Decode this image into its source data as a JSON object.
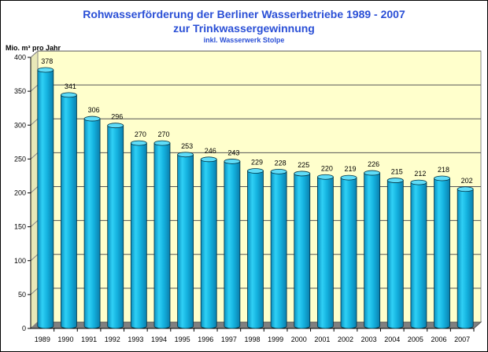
{
  "colors": {
    "title": "#2a4fd6",
    "bar": "#18b4e0",
    "wall": "#ffffcc",
    "floor": "#808080"
  },
  "chart_data": {
    "type": "bar",
    "title": "Rohwasserförderung der Berliner Wasserbetriebe 1989 - 2007",
    "subtitle": "zur Trinkwassergewinnung",
    "subtitle2": "inkl. Wasserwerk Stolpe",
    "ylabel": "Mio. m³ pro Jahr",
    "xlabel": "",
    "ylim": [
      0,
      400
    ],
    "yticks": [
      0,
      50,
      100,
      150,
      200,
      250,
      300,
      350,
      400
    ],
    "grid": true,
    "categories": [
      "1989",
      "1990",
      "1991",
      "1992",
      "1993",
      "1994",
      "1995",
      "1996",
      "1997",
      "1998",
      "1999",
      "2000",
      "2001",
      "2002",
      "2003",
      "2004",
      "2005",
      "2006",
      "2007"
    ],
    "values": [
      378,
      341,
      306,
      296,
      270,
      270,
      253,
      246,
      243,
      229,
      228,
      225,
      220,
      219,
      226,
      215,
      212,
      218,
      202
    ]
  }
}
